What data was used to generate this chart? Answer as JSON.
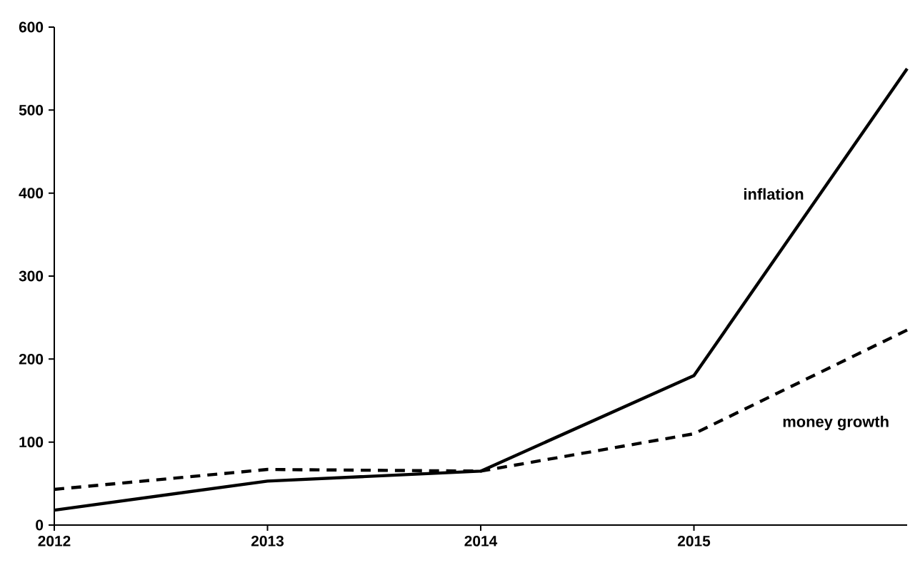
{
  "chart_data": {
    "type": "line",
    "x": [
      2012,
      2013,
      2014,
      2015,
      2016
    ],
    "series": [
      {
        "name": "inflation",
        "color": "#000000",
        "line_style": "solid",
        "values": [
          18,
          53,
          65,
          180,
          550
        ]
      },
      {
        "name": "money growth",
        "color": "#000000",
        "line_style": "dashed",
        "values": [
          43,
          67,
          65,
          110,
          235
        ]
      }
    ],
    "xlim": [
      2012,
      2016
    ],
    "xticks": [
      2012,
      2013,
      2014,
      2015
    ],
    "ylim": [
      0,
      600
    ],
    "yticks": [
      0,
      100,
      200,
      300,
      400,
      500,
      600
    ],
    "grid": false,
    "marker": "none"
  }
}
